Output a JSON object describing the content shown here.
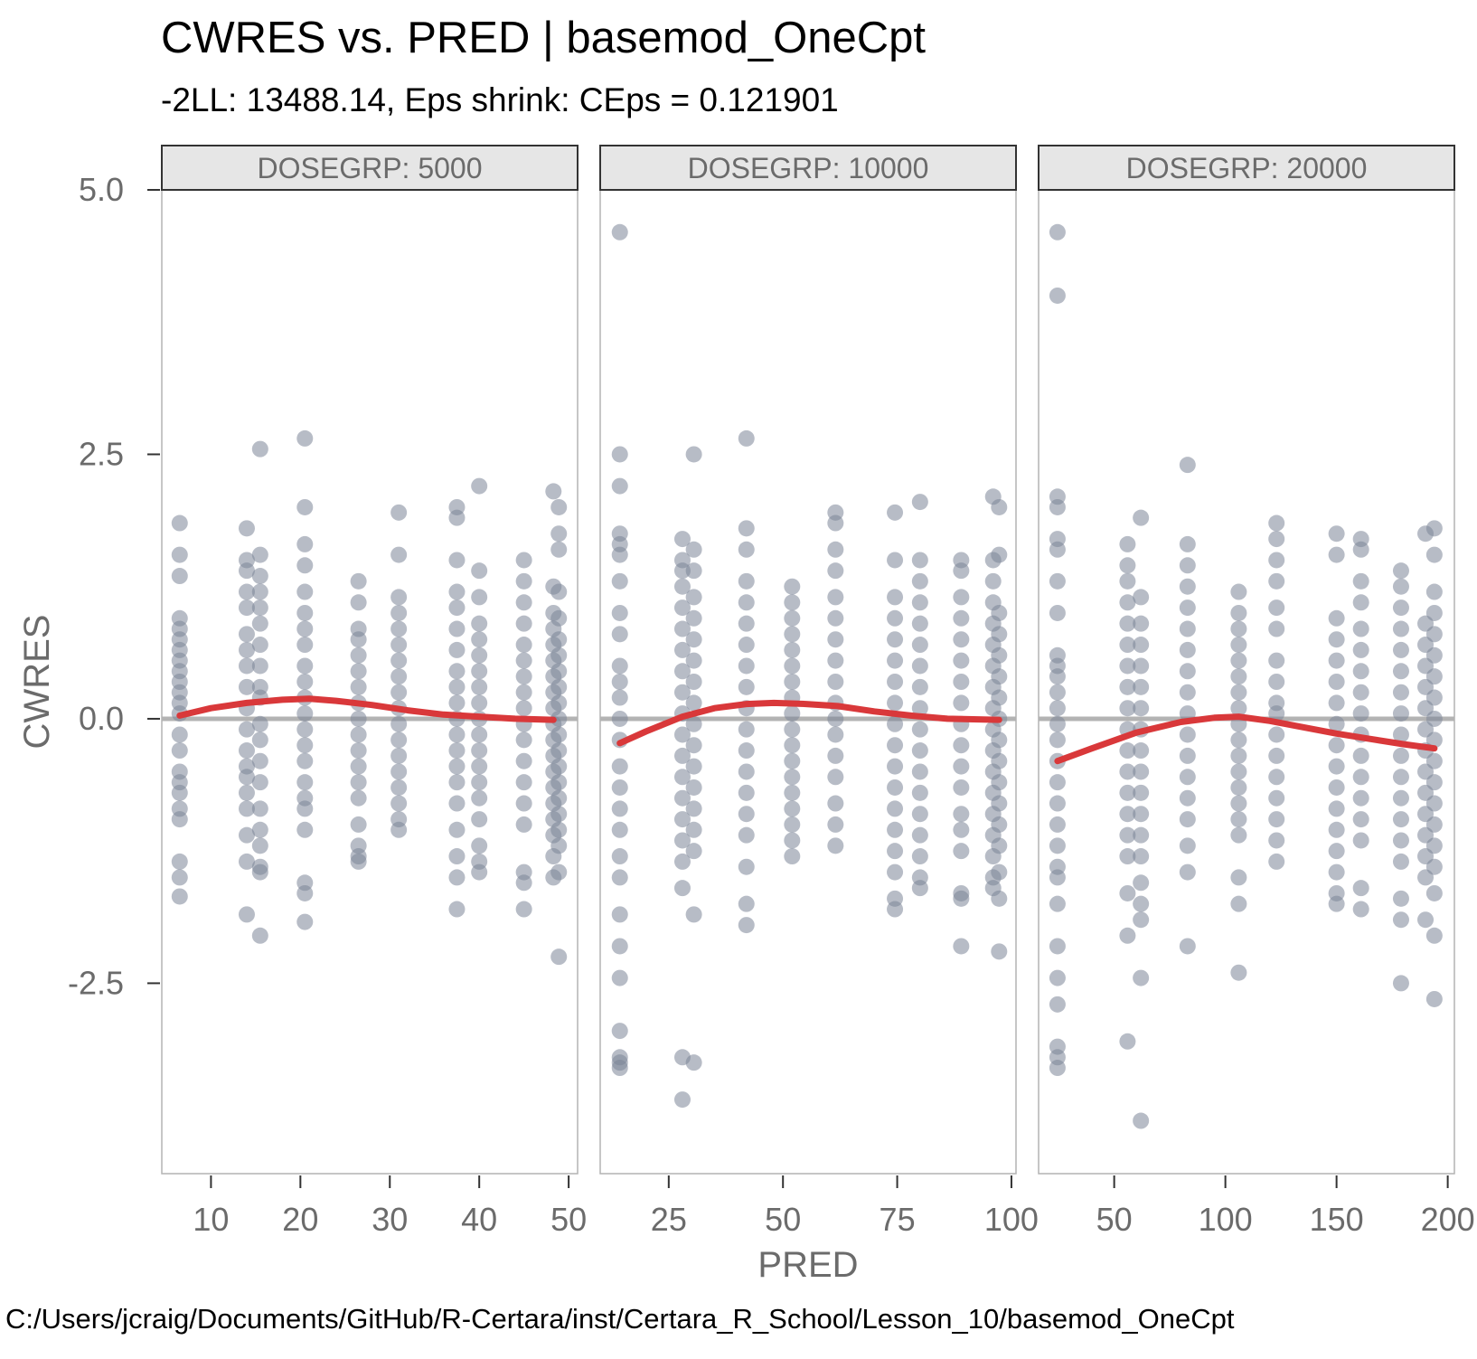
{
  "title": "CWRES vs. PRED | basemod_OneCpt",
  "subtitle": "-2LL: 13488.14, Eps shrink: CEps = 0.121901",
  "caption": "C:/Users/jcraig/Documents/GitHub/R-Certara/inst/Certara_R_School/Lesson_10/basemod_OneCpt",
  "colors": {
    "points": "#7c8597",
    "smooth": "#d9383a",
    "zero_line": "#b3b3b3",
    "strip_bg": "#e6e6e6"
  },
  "chart_data": {
    "type": "scatter",
    "xlabel": "PRED",
    "ylabel": "CWRES",
    "ylim": [
      -4.3,
      5.0
    ],
    "y_ticks": [
      5.0,
      2.5,
      0.0,
      -2.5
    ],
    "y_tick_labels": [
      "5.0",
      "2.5",
      "0.0",
      "-2.5"
    ],
    "reference_line": 0,
    "grid": false,
    "panels": [
      {
        "strip": "DOSEGRP: 5000",
        "xlim": [
          4.5,
          51
        ],
        "x_ticks": [
          10,
          20,
          30,
          40,
          50
        ],
        "x_tick_labels": [
          "10",
          "20",
          "30",
          "40",
          "50"
        ],
        "columns": [
          {
            "x": 6.5,
            "y": [
              1.85,
              1.55,
              1.35,
              0.95,
              0.85,
              0.75,
              0.65,
              0.55,
              0.45,
              0.35,
              0.25,
              0.15,
              0.05,
              -0.15,
              -0.3,
              -0.5,
              -0.6,
              -0.7,
              -0.85,
              -0.95,
              -1.35,
              -1.5,
              -1.68
            ]
          },
          {
            "x": 14,
            "y": [
              1.8,
              1.5,
              1.4,
              1.2,
              1.05,
              0.8,
              0.65,
              0.5,
              0.3,
              0.1,
              -0.1,
              -0.3,
              -0.45,
              -0.55,
              -0.7,
              -0.85,
              -1.1,
              -1.35,
              -1.85
            ]
          },
          {
            "x": 15.5,
            "y": [
              2.55,
              1.55,
              1.35,
              1.2,
              1.05,
              0.9,
              0.7,
              0.5,
              0.3,
              0.2,
              -0.05,
              -0.2,
              -0.4,
              -0.6,
              -0.85,
              -1.05,
              -1.2,
              -1.4,
              -1.45,
              -2.05
            ]
          },
          {
            "x": 20.5,
            "y": [
              2.65,
              2.0,
              1.65,
              1.45,
              1.2,
              1.0,
              0.85,
              0.7,
              0.5,
              0.35,
              0.2,
              0.05,
              -0.1,
              -0.25,
              -0.4,
              -0.6,
              -0.75,
              -0.85,
              -1.05,
              -1.55,
              -1.65,
              -1.92
            ]
          },
          {
            "x": 26.5,
            "y": [
              1.3,
              1.1,
              0.85,
              0.75,
              0.6,
              0.45,
              0.3,
              0.15,
              0.0,
              -0.15,
              -0.3,
              -0.45,
              -0.6,
              -0.75,
              -1.0,
              -1.2,
              -1.3,
              -1.35
            ]
          },
          {
            "x": 31,
            "y": [
              1.95,
              1.55,
              1.15,
              1.0,
              0.85,
              0.7,
              0.55,
              0.4,
              0.25,
              0.1,
              -0.05,
              -0.2,
              -0.35,
              -0.5,
              -0.65,
              -0.8,
              -0.95,
              -1.05
            ]
          },
          {
            "x": 37.5,
            "y": [
              2.0,
              1.9,
              1.5,
              1.2,
              1.05,
              0.85,
              0.65,
              0.45,
              0.3,
              0.15,
              0.0,
              -0.15,
              -0.3,
              -0.45,
              -0.6,
              -0.8,
              -1.05,
              -1.3,
              -1.5,
              -1.8
            ]
          },
          {
            "x": 40,
            "y": [
              2.2,
              1.4,
              1.15,
              0.9,
              0.75,
              0.6,
              0.45,
              0.3,
              0.15,
              0.0,
              -0.15,
              -0.3,
              -0.45,
              -0.6,
              -0.75,
              -0.95,
              -1.2,
              -1.35,
              -1.45
            ]
          },
          {
            "x": 45,
            "y": [
              1.5,
              1.3,
              1.1,
              0.9,
              0.7,
              0.55,
              0.4,
              0.25,
              0.1,
              -0.05,
              -0.2,
              -0.4,
              -0.6,
              -0.8,
              -1.0,
              -1.45,
              -1.55,
              -1.8
            ]
          },
          {
            "x": 48.3,
            "y": [
              2.15,
              1.25,
              1.0,
              0.85,
              0.7,
              0.55,
              0.4,
              0.25,
              0.1,
              -0.05,
              -0.2,
              -0.35,
              -0.5,
              -0.65,
              -0.8,
              -0.95,
              -1.1,
              -1.3,
              -1.5
            ]
          },
          {
            "x": 48.9,
            "y": [
              2.0,
              1.75,
              1.6,
              1.2,
              0.95,
              0.75,
              0.6,
              0.45,
              0.3,
              0.15,
              0.0,
              -0.15,
              -0.3,
              -0.45,
              -0.6,
              -0.75,
              -0.9,
              -1.05,
              -1.2,
              -1.45,
              -2.25
            ]
          }
        ],
        "smooth": {
          "x": [
            6.5,
            10,
            14,
            18,
            21,
            24,
            28,
            32,
            36,
            40,
            44,
            48.3
          ],
          "y": [
            0.03,
            0.1,
            0.15,
            0.18,
            0.19,
            0.17,
            0.13,
            0.08,
            0.04,
            0.02,
            0.0,
            -0.01
          ]
        }
      },
      {
        "strip": "DOSEGRP: 10000",
        "xlim": [
          10,
          101
        ],
        "x_ticks": [
          25,
          50,
          75,
          100
        ],
        "x_tick_labels": [
          "25",
          "50",
          "75",
          "100"
        ],
        "columns": [
          {
            "x": 14.3,
            "y": [
              4.6,
              2.5,
              2.2,
              1.75,
              1.65,
              1.55,
              1.3,
              1.0,
              0.8,
              0.5,
              0.35,
              0.2,
              0.0,
              -0.2,
              -0.45,
              -0.65,
              -0.85,
              -1.05,
              -1.3,
              -1.5,
              -1.85,
              -2.15,
              -2.45,
              -2.95,
              -3.2,
              -3.25,
              -3.3
            ]
          },
          {
            "x": 28,
            "y": [
              1.7,
              1.5,
              1.4,
              1.25,
              1.05,
              0.85,
              0.65,
              0.45,
              0.25,
              0.05,
              -0.15,
              -0.35,
              -0.55,
              -0.75,
              -0.95,
              -1.15,
              -1.35,
              -1.6,
              -3.2,
              -3.6
            ]
          },
          {
            "x": 30.5,
            "y": [
              2.5,
              1.6,
              1.4,
              1.15,
              0.95,
              0.75,
              0.55,
              0.35,
              0.15,
              -0.05,
              -0.25,
              -0.45,
              -0.65,
              -0.85,
              -1.05,
              -1.25,
              -1.85,
              -3.25
            ]
          },
          {
            "x": 42,
            "y": [
              2.65,
              1.8,
              1.6,
              1.3,
              1.1,
              0.9,
              0.7,
              0.5,
              0.3,
              0.1,
              -0.1,
              -0.3,
              -0.5,
              -0.7,
              -0.9,
              -1.1,
              -1.4,
              -1.75,
              -1.95
            ]
          },
          {
            "x": 52,
            "y": [
              1.25,
              1.1,
              0.95,
              0.8,
              0.65,
              0.5,
              0.35,
              0.2,
              0.05,
              -0.1,
              -0.25,
              -0.4,
              -0.55,
              -0.7,
              -0.85,
              -1.0,
              -1.15,
              -1.3
            ]
          },
          {
            "x": 61.5,
            "y": [
              1.95,
              1.85,
              1.6,
              1.4,
              1.15,
              0.95,
              0.75,
              0.55,
              0.35,
              0.15,
              0.0,
              -0.15,
              -0.35,
              -0.55,
              -0.8,
              -1.0,
              -1.2
            ]
          },
          {
            "x": 74.5,
            "y": [
              1.95,
              1.5,
              1.15,
              0.95,
              0.75,
              0.55,
              0.35,
              0.15,
              -0.05,
              -0.25,
              -0.45,
              -0.65,
              -0.85,
              -1.05,
              -1.25,
              -1.45,
              -1.7,
              -1.8
            ]
          },
          {
            "x": 80,
            "y": [
              2.05,
              1.5,
              1.3,
              1.1,
              0.9,
              0.7,
              0.5,
              0.3,
              0.1,
              -0.1,
              -0.3,
              -0.5,
              -0.7,
              -0.9,
              -1.1,
              -1.3,
              -1.5,
              -1.6
            ]
          },
          {
            "x": 89,
            "y": [
              1.5,
              1.4,
              1.15,
              0.95,
              0.75,
              0.55,
              0.35,
              0.15,
              -0.05,
              -0.25,
              -0.45,
              -0.65,
              -0.9,
              -1.05,
              -1.25,
              -1.65,
              -1.7,
              -2.15
            ]
          },
          {
            "x": 96,
            "y": [
              2.1,
              1.5,
              1.3,
              1.1,
              0.9,
              0.7,
              0.5,
              0.3,
              0.1,
              -0.1,
              -0.3,
              -0.5,
              -0.7,
              -0.9,
              -1.1,
              -1.3,
              -1.5,
              -1.6
            ]
          },
          {
            "x": 97.3,
            "y": [
              2.0,
              1.55,
              1.0,
              0.8,
              0.6,
              0.4,
              0.2,
              0.0,
              -0.2,
              -0.4,
              -0.6,
              -0.8,
              -1.0,
              -1.2,
              -1.45,
              -1.7,
              -2.2
            ]
          }
        ],
        "smooth": {
          "x": [
            14.3,
            20,
            28,
            35,
            42,
            48,
            55,
            62,
            70,
            78,
            86,
            97.3
          ],
          "y": [
            -0.23,
            -0.12,
            0.02,
            0.1,
            0.14,
            0.15,
            0.14,
            0.12,
            0.07,
            0.03,
            0.0,
            -0.01
          ]
        }
      },
      {
        "strip": "DOSEGRP: 20000",
        "xlim": [
          16,
          203
        ],
        "x_ticks": [
          50,
          100,
          150,
          200
        ],
        "x_tick_labels": [
          "50",
          "100",
          "150",
          "200"
        ],
        "columns": [
          {
            "x": 24.5,
            "y": [
              4.6,
              4.0,
              2.1,
              2.0,
              1.7,
              1.6,
              1.3,
              1.0,
              0.6,
              0.5,
              0.4,
              0.25,
              0.1,
              -0.05,
              -0.2,
              -0.4,
              -0.6,
              -0.8,
              -1.0,
              -1.2,
              -1.4,
              -1.5,
              -1.75,
              -2.15,
              -2.45,
              -2.7,
              -3.1,
              -3.2,
              -3.3
            ]
          },
          {
            "x": 56,
            "y": [
              1.65,
              1.45,
              1.3,
              1.1,
              0.9,
              0.7,
              0.5,
              0.3,
              0.1,
              -0.1,
              -0.3,
              -0.5,
              -0.7,
              -0.9,
              -1.1,
              -1.3,
              -1.65,
              -2.05,
              -3.05
            ]
          },
          {
            "x": 62,
            "y": [
              1.9,
              1.15,
              0.9,
              0.7,
              0.5,
              0.3,
              0.1,
              -0.1,
              -0.3,
              -0.5,
              -0.7,
              -0.9,
              -1.1,
              -1.3,
              -1.55,
              -1.75,
              -1.9,
              -2.45,
              -3.8
            ]
          },
          {
            "x": 83,
            "y": [
              2.4,
              1.65,
              1.45,
              1.25,
              1.05,
              0.85,
              0.65,
              0.45,
              0.25,
              0.05,
              -0.15,
              -0.35,
              -0.55,
              -0.75,
              -0.95,
              -1.2,
              -1.45,
              -2.15
            ]
          },
          {
            "x": 106,
            "y": [
              1.2,
              1.0,
              0.85,
              0.7,
              0.55,
              0.4,
              0.25,
              0.1,
              -0.05,
              -0.2,
              -0.35,
              -0.5,
              -0.65,
              -0.8,
              -0.95,
              -1.1,
              -1.5,
              -1.75,
              -2.4
            ]
          },
          {
            "x": 123,
            "y": [
              1.85,
              1.7,
              1.5,
              1.3,
              1.05,
              0.85,
              0.55,
              0.35,
              0.15,
              0.05,
              -0.15,
              -0.35,
              -0.55,
              -0.75,
              -0.95,
              -1.15,
              -1.35
            ]
          },
          {
            "x": 150,
            "y": [
              1.75,
              1.55,
              0.95,
              0.75,
              0.55,
              0.35,
              0.15,
              -0.05,
              -0.25,
              -0.45,
              -0.65,
              -0.85,
              -1.05,
              -1.25,
              -1.45,
              -1.65,
              -1.75
            ]
          },
          {
            "x": 161,
            "y": [
              1.7,
              1.6,
              1.3,
              1.1,
              0.85,
              0.65,
              0.45,
              0.25,
              0.05,
              -0.15,
              -0.35,
              -0.55,
              -0.75,
              -0.95,
              -1.15,
              -1.6,
              -1.8
            ]
          },
          {
            "x": 179,
            "y": [
              1.4,
              1.25,
              1.05,
              0.85,
              0.65,
              0.45,
              0.25,
              0.05,
              -0.15,
              -0.35,
              -0.55,
              -0.75,
              -0.95,
              -1.15,
              -1.35,
              -1.7,
              -1.9,
              -2.5
            ]
          },
          {
            "x": 190,
            "y": [
              1.75,
              0.9,
              0.7,
              0.5,
              0.3,
              0.1,
              -0.1,
              -0.3,
              -0.5,
              -0.7,
              -0.9,
              -1.1,
              -1.3,
              -1.5,
              -1.9
            ]
          },
          {
            "x": 194,
            "y": [
              1.8,
              1.55,
              1.2,
              1.0,
              0.8,
              0.6,
              0.4,
              0.2,
              0.0,
              -0.2,
              -0.4,
              -0.6,
              -0.8,
              -1.0,
              -1.2,
              -1.4,
              -1.65,
              -2.05,
              -2.65
            ]
          }
        ],
        "smooth": {
          "x": [
            24.5,
            40,
            60,
            80,
            95,
            106,
            120,
            135,
            150,
            165,
            180,
            194
          ],
          "y": [
            -0.4,
            -0.28,
            -0.13,
            -0.03,
            0.01,
            0.02,
            -0.02,
            -0.08,
            -0.14,
            -0.19,
            -0.24,
            -0.28
          ]
        }
      }
    ]
  }
}
